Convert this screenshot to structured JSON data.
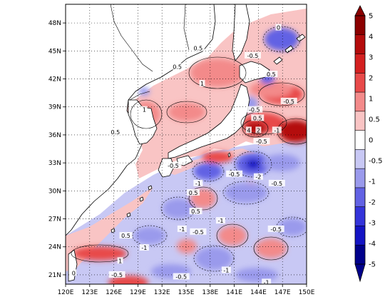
{
  "map": {
    "lon_range": [
      120,
      150
    ],
    "lat_range": [
      20,
      50
    ],
    "x_ticks": [
      "120E",
      "123E",
      "126E",
      "129E",
      "132E",
      "135E",
      "138E",
      "141E",
      "144E",
      "147E",
      "150E"
    ],
    "y_ticks": [
      "21N",
      "24N",
      "27N",
      "30N",
      "33N",
      "36N",
      "39N",
      "42N",
      "45N",
      "48N"
    ],
    "gridlines": "dotted",
    "contour_labels": [
      {
        "text": "0.5",
        "lon": 136.5,
        "lat": 45.3
      },
      {
        "text": "0.5",
        "lon": 133.9,
        "lat": 43.3
      },
      {
        "text": "1",
        "lon": 137.0,
        "lat": 41.5
      },
      {
        "text": "1",
        "lon": 129.8,
        "lat": 38.7
      },
      {
        "text": "0.5",
        "lon": 126.2,
        "lat": 36.3
      },
      {
        "text": "-0.5",
        "lon": 143.3,
        "lat": 44.5
      },
      {
        "text": "0.5",
        "lon": 145.6,
        "lat": 42.5
      },
      {
        "text": "0",
        "lon": 146.5,
        "lat": 47.5
      },
      {
        "text": "-0.5",
        "lon": 147.8,
        "lat": 39.6
      },
      {
        "text": "-0.5",
        "lon": 143.5,
        "lat": 38.7
      },
      {
        "text": "0.5",
        "lon": 143.9,
        "lat": 37.8
      },
      {
        "text": "4",
        "lon": 142.8,
        "lat": 36.5
      },
      {
        "text": "2",
        "lon": 144.0,
        "lat": 36.5
      },
      {
        "text": "-1",
        "lon": 146.3,
        "lat": 36.5
      },
      {
        "text": "-0.5",
        "lon": 144.4,
        "lat": 35.3
      },
      {
        "text": "-0.5",
        "lon": 141.0,
        "lat": 31.8
      },
      {
        "text": "-2",
        "lon": 144.0,
        "lat": 31.5
      },
      {
        "text": "-0.5",
        "lon": 146.3,
        "lat": 30.8
      },
      {
        "text": "-0.5",
        "lon": 133.4,
        "lat": 32.7
      },
      {
        "text": "-1",
        "lon": 136.5,
        "lat": 30.8
      },
      {
        "text": "0.5",
        "lon": 135.9,
        "lat": 29.8
      },
      {
        "text": "0.5",
        "lon": 136.2,
        "lat": 27.8
      },
      {
        "text": "-1",
        "lon": 139.3,
        "lat": 26.8
      },
      {
        "text": "-1",
        "lon": 134.5,
        "lat": 25.9
      },
      {
        "text": "-0.5",
        "lon": 136.5,
        "lat": 25.6
      },
      {
        "text": "-0.5",
        "lon": 146.2,
        "lat": 25.9
      },
      {
        "text": "0.5",
        "lon": 127.5,
        "lat": 25.2
      },
      {
        "text": "-1",
        "lon": 129.8,
        "lat": 23.9
      },
      {
        "text": "1",
        "lon": 126.8,
        "lat": 22.5
      },
      {
        "text": "-0.5",
        "lon": 126.4,
        "lat": 21.0
      },
      {
        "text": "-0.5",
        "lon": 134.4,
        "lat": 20.8
      },
      {
        "text": "-1",
        "lon": 140.0,
        "lat": 21.5
      },
      {
        "text": "-1",
        "lon": 145.0,
        "lat": 20.2
      },
      {
        "text": "0",
        "lon": 121.0,
        "lat": 21.2
      }
    ]
  },
  "colorbar": {
    "labels": [
      "5",
      "4",
      "3",
      "2",
      "1",
      "0.5",
      "0",
      "-0.5",
      "-1",
      "-2",
      "-3",
      "-4",
      "-5"
    ],
    "colors": [
      "#8b0000",
      "#b40c0c",
      "#d42020",
      "#e84a4a",
      "#f38a8a",
      "#f9c4c4",
      "#ffffff",
      "#c8c8f4",
      "#9a9aec",
      "#6262e4",
      "#3434da",
      "#1414c4",
      "#00008b"
    ],
    "ticks_dx": 0
  },
  "colors": {
    "positive_light": "#f9c4c4",
    "positive_mid": "#f38a8a",
    "positive_strong": "#e84a4a",
    "positive_deep": "#b40c0c",
    "negative_light": "#c8c8f4",
    "negative_mid": "#9a9aec",
    "negative_strong": "#6262e4",
    "negative_deep": "#1414c4",
    "land": "#ffffff",
    "coastline": "#000000"
  }
}
